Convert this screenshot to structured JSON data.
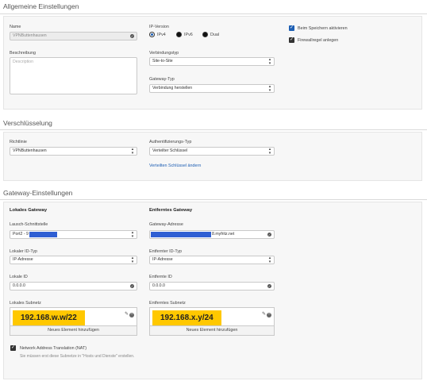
{
  "general": {
    "title": "Allgemeine Einstellungen",
    "name_label": "Name",
    "name_value": "VPNButtenhausen",
    "description_label": "Beschreibung",
    "description_placeholder": "Description",
    "ip_version_label": "IP-Version",
    "ip_options": [
      "IPv4",
      "IPv6",
      "Dual"
    ],
    "connection_type_label": "Verbindungstyp",
    "connection_type_value": "Site-to-Site",
    "gateway_type_label": "Gateway-Typ",
    "gateway_type_value": "Verbindung herstellen",
    "activate_on_save": "Beim Speichern aktivieren",
    "firewall_rule": "Firewallregel anlegen"
  },
  "encryption": {
    "title": "Verschlüsselung",
    "policy_label": "Richtlinie",
    "policy_value": "VPNButtenhausen",
    "auth_type_label": "Authentifizierungs-Typ",
    "auth_type_value": "Verteilter Schlüssel",
    "change_key_link": "Verteilten Schlüssel ändern"
  },
  "gateway": {
    "title": "Gateway-Einstellungen",
    "local_heading": "Lokales Gateway",
    "remote_heading": "Entferntes Gateway",
    "listen_interface_label": "Lausch-Schnittstelle",
    "listen_interface_value": "Port2 - 9",
    "gateway_address_label": "Gateway-Adresse",
    "gateway_address_suffix": "8.myfritz.net",
    "local_id_type_label": "Lokaler ID-Typ",
    "local_id_type_value": "IP-Adresse",
    "remote_id_type_label": "Entfernter ID-Typ",
    "remote_id_type_value": "IP-Adresse",
    "local_id_label": "Lokale ID",
    "local_id_value": "0.0.0.0",
    "remote_id_label": "Entfernte ID",
    "remote_id_value": "0.0.0.0",
    "local_subnet_label": "Lokales Subnetz",
    "local_subnet_value": "192.168.w.w/22",
    "remote_subnet_label": "Entferntes Subnetz",
    "remote_subnet_value": "192.168.x.y/24",
    "add_element": "Neues Element hinzufügen",
    "nat_label": "Network Address Translation (NAT)",
    "nat_hint": "Sie müssen erst diese Subnetze in \"Hosts und Dienste\" erstellen."
  },
  "colors": {
    "accent": "#1e5fb4",
    "highlight": "#ffc800",
    "redaction": "#2f5fd3"
  }
}
